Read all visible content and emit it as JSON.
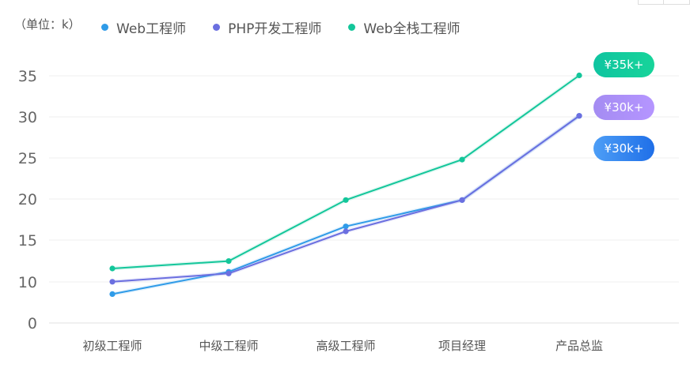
{
  "unit_label": "（单位：k）",
  "legend": [
    {
      "label": "Web工程师",
      "color": "#2f9be8",
      "key": "web"
    },
    {
      "label": "PHP开发工程师",
      "color": "#6b6fe0",
      "key": "php"
    },
    {
      "label": "Web全栈工程师",
      "color": "#13c69a",
      "key": "fullstack"
    }
  ],
  "badges": [
    {
      "label": "¥35k+",
      "gradient": [
        "#0fc4a0",
        "#17d49a"
      ]
    },
    {
      "label": "¥30k+",
      "gradient": [
        "#a48cf2",
        "#b595ff"
      ]
    },
    {
      "label": "¥30k+",
      "gradient": [
        "#4d9ef6",
        "#1f6fe8"
      ]
    }
  ],
  "chart_data": {
    "type": "line",
    "categories": [
      "初级工程师",
      "中级工程师",
      "高级工程师",
      "项目经理",
      "产品总监"
    ],
    "yticks": [
      "0",
      "10",
      "15",
      "20",
      "25",
      "30",
      "35"
    ],
    "series": [
      {
        "name": "Web工程师",
        "color": "#2f9be8",
        "values": [
          8.5,
          11.2,
          16.7,
          19.9,
          30.1
        ]
      },
      {
        "name": "PHP开发工程师",
        "color": "#6b6fe0",
        "values": [
          10.0,
          11.0,
          16.1,
          19.9,
          30.1
        ]
      },
      {
        "name": "Web全栈工程师",
        "color": "#13c69a",
        "values": [
          11.6,
          12.5,
          19.9,
          24.8,
          35.0
        ]
      }
    ],
    "ylim": [
      5,
      35
    ],
    "grid": true,
    "legend_position": "top-left",
    "xlabel": "",
    "ylabel": ""
  }
}
